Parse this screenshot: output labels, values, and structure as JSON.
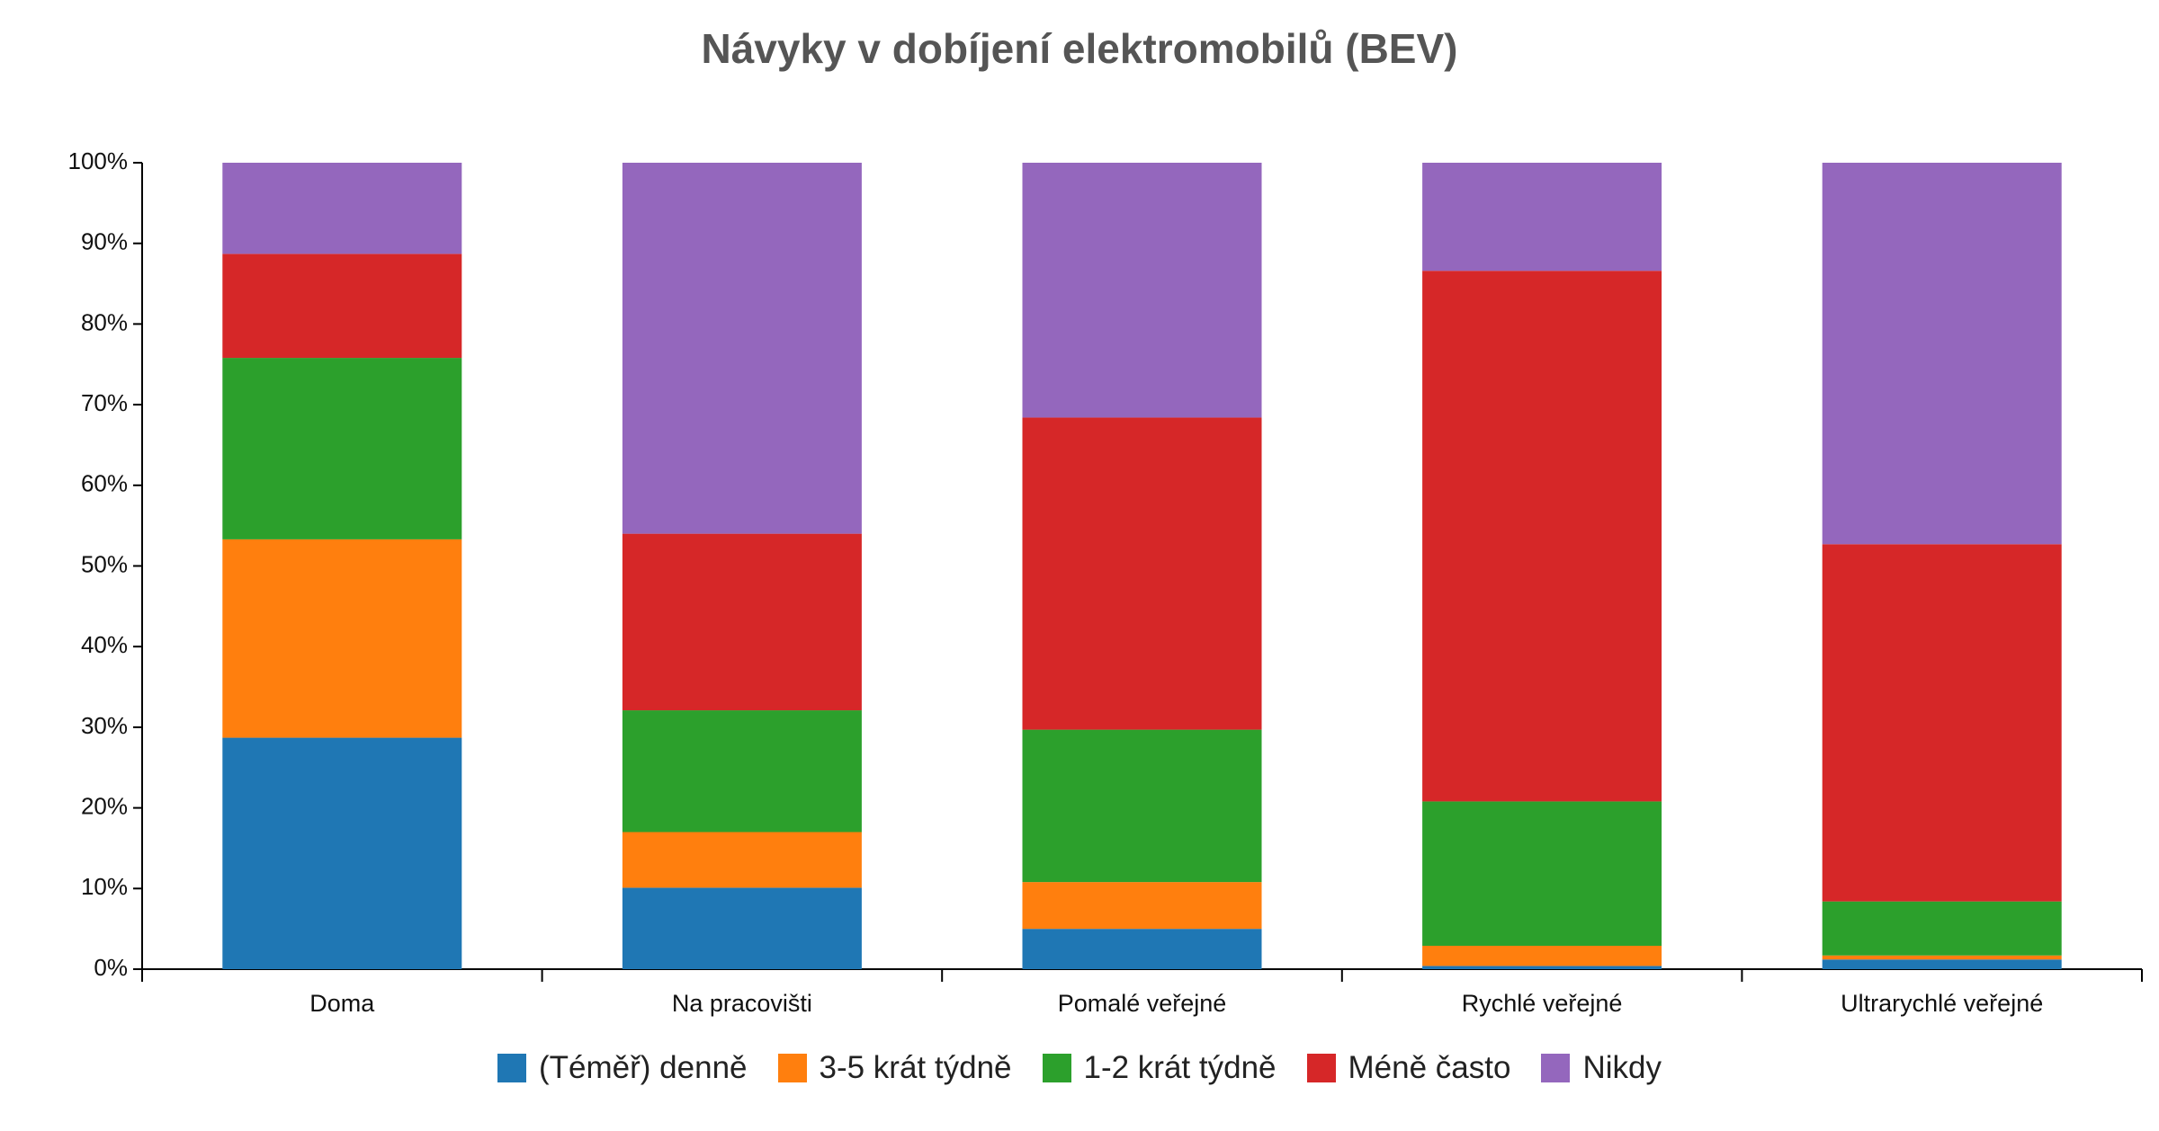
{
  "chart_data": {
    "type": "stacked_bar",
    "title": "Návyky v dobíjení elektromobilů (BEV)",
    "categories": [
      "Doma",
      "Na pracovišti",
      "Pomalé veřejné",
      "Rychlé veřejné",
      "Ultrarychlé veřejné"
    ],
    "series": [
      {
        "name": "(Téměř) denně",
        "color": "#1f77b4",
        "values": [
          28.7,
          10.1,
          5.0,
          0.4,
          1.2
        ]
      },
      {
        "name": "3-5 krát týdně",
        "color": "#ff7f0e",
        "values": [
          24.6,
          6.9,
          5.8,
          2.5,
          0.5
        ]
      },
      {
        "name": "1-2 krát týdně",
        "color": "#2ca02c",
        "values": [
          22.5,
          15.1,
          18.9,
          17.9,
          6.7
        ]
      },
      {
        "name": "Méně často",
        "color": "#d62728",
        "values": [
          12.9,
          21.9,
          38.7,
          65.8,
          44.3
        ]
      },
      {
        "name": "Nikdy",
        "color": "#9467bd",
        "values": [
          11.3,
          46.0,
          31.6,
          13.4,
          47.3
        ]
      }
    ],
    "ylim": [
      0,
      100
    ],
    "yticks": [
      {
        "value": 0,
        "label": "0%"
      },
      {
        "value": 10,
        "label": "10%"
      },
      {
        "value": 20,
        "label": "20%"
      },
      {
        "value": 30,
        "label": "30%"
      },
      {
        "value": 40,
        "label": "40%"
      },
      {
        "value": 50,
        "label": "50%"
      },
      {
        "value": 60,
        "label": "60%"
      },
      {
        "value": 70,
        "label": "70%"
      },
      {
        "value": 80,
        "label": "80%"
      },
      {
        "value": 90,
        "label": "90%"
      },
      {
        "value": 100,
        "label": "100%"
      }
    ],
    "grid": false,
    "legend": "bottom"
  }
}
